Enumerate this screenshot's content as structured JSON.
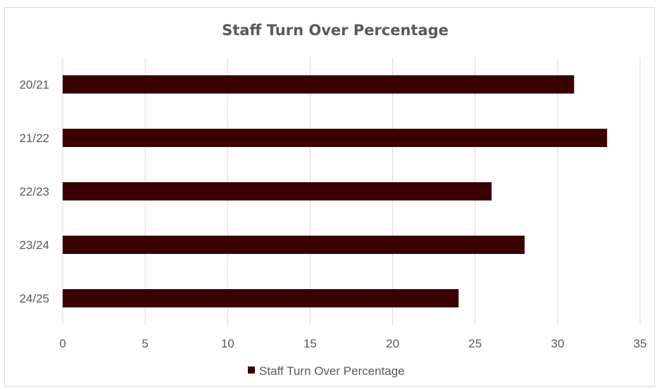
{
  "chart_data": {
    "type": "bar",
    "orientation": "horizontal",
    "title": "Staff Turn Over Percentage",
    "categories": [
      "20/21",
      "21/22",
      "22/23",
      "23/24",
      "24/25"
    ],
    "series": [
      {
        "name": "Staff Turn Over Percentage",
        "values": [
          31,
          33,
          26,
          28,
          24
        ],
        "color": "#3a0000"
      }
    ],
    "xlim": [
      0,
      35
    ],
    "x_ticks": [
      "0",
      "5",
      "10",
      "15",
      "20",
      "25",
      "30",
      "35"
    ],
    "grid": true,
    "legend_position": "bottom",
    "gridline_color": "#d9d9d9"
  }
}
